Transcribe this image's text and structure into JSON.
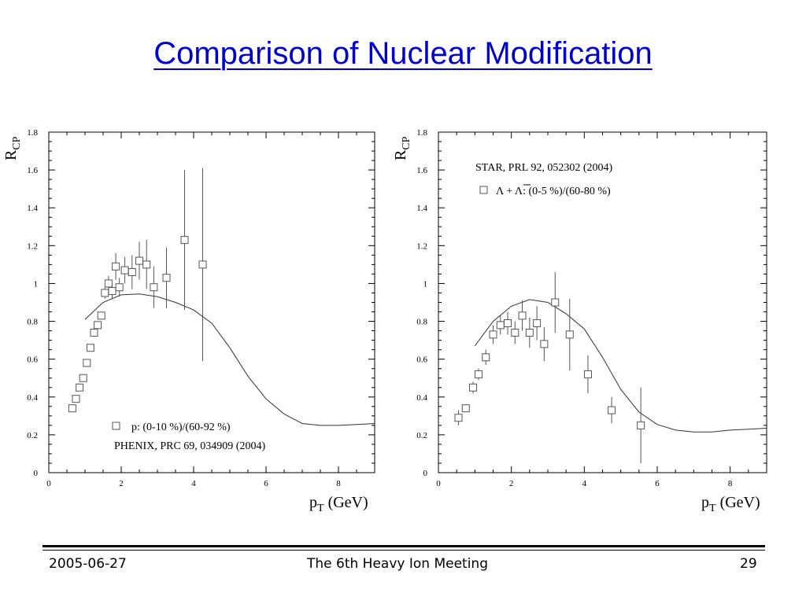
{
  "slide": {
    "title": "Comparison of Nuclear Modification",
    "footer": {
      "date": "2005-06-27",
      "event": "The 6th Heavy Ion Meeting",
      "page": "29"
    }
  },
  "chart_data": [
    {
      "type": "scatter",
      "title": "",
      "ylabel_main": "R",
      "ylabel_sub": "CP",
      "xlabel_main": "p",
      "xlabel_sub": "T",
      "xlabel_unit": " (GeV)",
      "xlim": [
        0,
        9
      ],
      "ylim": [
        0,
        1.8
      ],
      "xticks": [
        0,
        2,
        4,
        6,
        8
      ],
      "xtick_labels": [
        "0",
        "2",
        "4",
        "6",
        "8"
      ],
      "yticks": [
        0,
        0.2,
        0.4,
        0.6,
        0.8,
        1,
        1.2,
        1.4,
        1.6,
        1.8
      ],
      "ytick_labels": [
        "0",
        "0.2",
        "0.4",
        "0.6",
        "0.8",
        "1",
        "1.2",
        "1.4",
        "1.6",
        "1.8"
      ],
      "legend_entry": "p: (0-10 %)/(60-92 %)",
      "reference": "PHENIX, PRC 69, 034909 (2004)",
      "series": [
        {
          "marker": "open-square",
          "points": [
            {
              "x": 0.65,
              "y": 0.34,
              "err": 0
            },
            {
              "x": 0.75,
              "y": 0.39,
              "err": 0
            },
            {
              "x": 0.85,
              "y": 0.45,
              "err": 0
            },
            {
              "x": 0.95,
              "y": 0.5,
              "err": 0
            },
            {
              "x": 1.05,
              "y": 0.58,
              "err": 0
            },
            {
              "x": 1.15,
              "y": 0.66,
              "err": 0
            },
            {
              "x": 1.25,
              "y": 0.74,
              "err": 0
            },
            {
              "x": 1.35,
              "y": 0.78,
              "err": 0
            },
            {
              "x": 1.45,
              "y": 0.83,
              "err": 0.02
            },
            {
              "x": 1.55,
              "y": 0.95,
              "err": 0.03
            },
            {
              "x": 1.65,
              "y": 1.0,
              "err": 0.04
            },
            {
              "x": 1.75,
              "y": 0.96,
              "err": 0.04
            },
            {
              "x": 1.85,
              "y": 1.09,
              "err": 0.07
            },
            {
              "x": 1.95,
              "y": 0.98,
              "err": 0.05
            },
            {
              "x": 2.1,
              "y": 1.07,
              "err": 0.07
            },
            {
              "x": 2.3,
              "y": 1.06,
              "err": 0.09
            },
            {
              "x": 2.5,
              "y": 1.12,
              "err": 0.1
            },
            {
              "x": 2.7,
              "y": 1.1,
              "err": 0.13
            },
            {
              "x": 2.9,
              "y": 0.98,
              "err": 0.11
            },
            {
              "x": 3.25,
              "y": 1.03,
              "err": 0.16
            },
            {
              "x": 3.75,
              "y": 1.23,
              "err": 0.37
            },
            {
              "x": 4.25,
              "y": 1.1,
              "err": 0.51
            }
          ]
        },
        {
          "type": "line",
          "points": [
            [
              1.0,
              0.81
            ],
            [
              1.5,
              0.9
            ],
            [
              2.0,
              0.94
            ],
            [
              2.5,
              0.945
            ],
            [
              3.0,
              0.93
            ],
            [
              3.5,
              0.9
            ],
            [
              4.0,
              0.86
            ],
            [
              4.5,
              0.79
            ],
            [
              5.0,
              0.66
            ],
            [
              5.5,
              0.51
            ],
            [
              6.0,
              0.39
            ],
            [
              6.5,
              0.31
            ],
            [
              7.0,
              0.26
            ],
            [
              7.5,
              0.25
            ],
            [
              8.0,
              0.25
            ],
            [
              8.5,
              0.255
            ],
            [
              9.0,
              0.26
            ]
          ]
        }
      ]
    },
    {
      "type": "scatter",
      "title": "",
      "ylabel_main": "R",
      "ylabel_sub": "CP",
      "xlabel_main": "p",
      "xlabel_sub": "T",
      "xlabel_unit": " (GeV)",
      "xlim": [
        0,
        9
      ],
      "ylim": [
        0,
        1.8
      ],
      "xticks": [
        0,
        2,
        4,
        6,
        8
      ],
      "xtick_labels": [
        "0",
        "2",
        "4",
        "6",
        "8"
      ],
      "yticks": [
        0,
        0.2,
        0.4,
        0.6,
        0.8,
        1,
        1.2,
        1.4,
        1.6,
        1.8
      ],
      "ytick_labels": [
        "0",
        "0.2",
        "0.4",
        "0.6",
        "0.8",
        "1",
        "1.2",
        "1.4",
        "1.6",
        "1.8"
      ],
      "reference": "STAR, PRL 92, 052302 (2004)",
      "legend_entry": "Λ + Λ: (0-5 %)/(60-80 %)",
      "series": [
        {
          "marker": "open-square",
          "points": [
            {
              "x": 0.55,
              "y": 0.29,
              "err": 0.04
            },
            {
              "x": 0.75,
              "y": 0.34,
              "err": 0.02
            },
            {
              "x": 0.95,
              "y": 0.45,
              "err": 0.03
            },
            {
              "x": 1.1,
              "y": 0.52,
              "err": 0.03
            },
            {
              "x": 1.3,
              "y": 0.61,
              "err": 0.04
            },
            {
              "x": 1.5,
              "y": 0.73,
              "err": 0.05
            },
            {
              "x": 1.7,
              "y": 0.78,
              "err": 0.05
            },
            {
              "x": 1.9,
              "y": 0.79,
              "err": 0.06
            },
            {
              "x": 2.1,
              "y": 0.74,
              "err": 0.06
            },
            {
              "x": 2.3,
              "y": 0.83,
              "err": 0.08
            },
            {
              "x": 2.5,
              "y": 0.74,
              "err": 0.08
            },
            {
              "x": 2.7,
              "y": 0.79,
              "err": 0.09
            },
            {
              "x": 2.9,
              "y": 0.68,
              "err": 0.09
            },
            {
              "x": 3.2,
              "y": 0.9,
              "err": 0.16
            },
            {
              "x": 3.6,
              "y": 0.73,
              "err": 0.19
            },
            {
              "x": 4.1,
              "y": 0.52,
              "err": 0.1
            },
            {
              "x": 4.75,
              "y": 0.33,
              "err": 0.07
            },
            {
              "x": 5.55,
              "y": 0.25,
              "err": 0.2
            }
          ]
        },
        {
          "type": "line",
          "points": [
            [
              1.0,
              0.67
            ],
            [
              1.5,
              0.8
            ],
            [
              2.0,
              0.88
            ],
            [
              2.5,
              0.915
            ],
            [
              3.0,
              0.9
            ],
            [
              3.5,
              0.84
            ],
            [
              4.0,
              0.76
            ],
            [
              4.5,
              0.61
            ],
            [
              5.0,
              0.44
            ],
            [
              5.5,
              0.32
            ],
            [
              6.0,
              0.255
            ],
            [
              6.5,
              0.225
            ],
            [
              7.0,
              0.215
            ],
            [
              7.5,
              0.215
            ],
            [
              8.0,
              0.225
            ],
            [
              8.5,
              0.23
            ],
            [
              9.0,
              0.235
            ]
          ]
        }
      ]
    }
  ]
}
